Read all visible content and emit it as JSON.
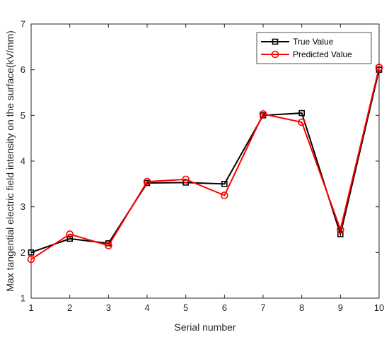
{
  "chart_data": {
    "type": "line",
    "title": "",
    "xlabel": "Serial number",
    "ylabel": "Max tangential  electric field intensity on the surface(kV/mm)",
    "x": [
      1,
      2,
      3,
      4,
      5,
      6,
      7,
      8,
      9,
      10
    ],
    "xlim": [
      1,
      10
    ],
    "ylim": [
      1,
      7
    ],
    "xticks": [
      "1",
      "2",
      "3",
      "4",
      "5",
      "6",
      "7",
      "8",
      "9",
      "10"
    ],
    "yticks": [
      "1",
      "2",
      "3",
      "4",
      "5",
      "6",
      "7"
    ],
    "grid": false,
    "legend_position": "top-right",
    "series": [
      {
        "name": "True Value",
        "color": "#000000",
        "marker": "square",
        "values": [
          2.0,
          2.3,
          2.2,
          3.52,
          3.53,
          3.5,
          5.0,
          5.05,
          2.4,
          6.0
        ]
      },
      {
        "name": "Predicted Value",
        "color": "#ff0000",
        "marker": "circle",
        "values": [
          1.85,
          2.4,
          2.15,
          3.55,
          3.6,
          3.25,
          5.03,
          4.85,
          2.5,
          6.05
        ]
      }
    ]
  }
}
